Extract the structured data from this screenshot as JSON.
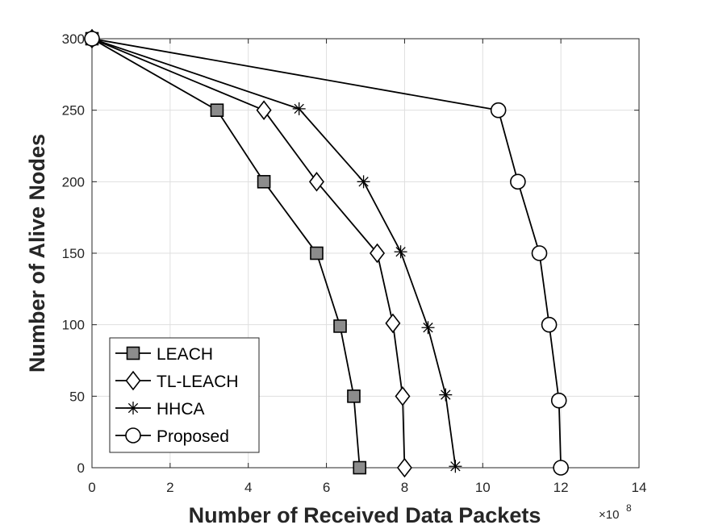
{
  "chart_data": {
    "type": "line",
    "xlabel": "Number of Received Data Packets",
    "ylabel": "Number of Alive Nodes",
    "x_exponent_base": "×10",
    "x_exponent_power": "8",
    "xlim": [
      0,
      14
    ],
    "ylim": [
      0,
      300
    ],
    "xticks": [
      "0",
      "2",
      "4",
      "6",
      "8",
      "10",
      "12",
      "14"
    ],
    "yticks": [
      "0",
      "50",
      "100",
      "150",
      "200",
      "250",
      "300"
    ],
    "grid": true,
    "legend_position": "bottom-left",
    "series": [
      {
        "name": "LEACH",
        "marker": "square",
        "x": [
          0,
          3.2,
          4.4,
          5.75,
          6.35,
          6.7,
          6.85
        ],
        "y": [
          300,
          250,
          200,
          150,
          99,
          50,
          0
        ]
      },
      {
        "name": "TL-LEACH",
        "marker": "diamond",
        "x": [
          0,
          4.4,
          5.75,
          7.3,
          7.7,
          7.95,
          8.0
        ],
        "y": [
          300,
          250,
          200,
          150,
          101,
          50,
          0
        ]
      },
      {
        "name": "HHCA",
        "marker": "asterisk",
        "x": [
          0,
          5.3,
          6.95,
          7.9,
          8.6,
          9.05,
          9.3
        ],
        "y": [
          300,
          251,
          200,
          151,
          98,
          51,
          1
        ]
      },
      {
        "name": "Proposed",
        "marker": "circle",
        "x": [
          0,
          10.4,
          10.9,
          11.45,
          11.7,
          11.95,
          12.0
        ],
        "y": [
          300,
          250,
          200,
          150,
          100,
          47,
          0
        ]
      }
    ]
  },
  "colors": {
    "line": "#000000",
    "square_fill": "#8c8c8c",
    "axis": "#262626",
    "grid": "#dfdfdf"
  }
}
